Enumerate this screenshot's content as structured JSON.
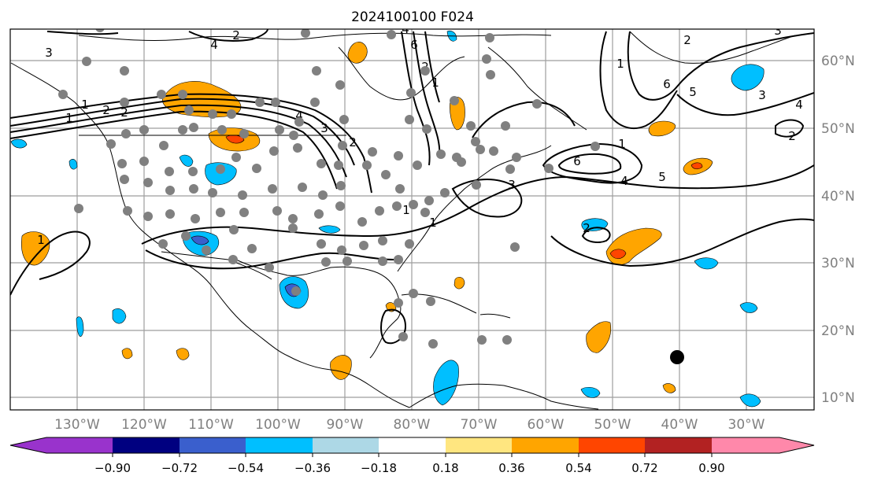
{
  "title": "2024100100 F024",
  "lon_labels": [
    "130°W",
    "120°W",
    "110°W",
    "100°W",
    "90°W",
    "80°W",
    "70°W",
    "60°W",
    "50°W",
    "40°W",
    "30°W"
  ],
  "lat_labels": [
    "60°N",
    "50°N",
    "40°N",
    "30°N",
    "20°N",
    "10°N"
  ],
  "colorbar": {
    "tick_labels": [
      "−0.90",
      "−0.72",
      "−0.54",
      "−0.36",
      "−0.18",
      "0.18",
      "0.36",
      "0.54",
      "0.72",
      "0.90"
    ],
    "colors": [
      "#9933cc",
      "#000080",
      "#3a5fcd",
      "#00bfff",
      "#add8e6",
      "#ffffff",
      "#ffe680",
      "#ffa500",
      "#ff4500",
      "#b22222",
      "#ff88aa"
    ]
  },
  "contour_labels": [
    "1",
    "2",
    "3",
    "4",
    "5",
    "6",
    "1",
    "2",
    "3",
    "4",
    "5",
    "6",
    "1",
    "2",
    "3",
    "4",
    "6",
    "2",
    "1",
    "2",
    "3",
    "4",
    "2",
    "1",
    "1",
    "2",
    "3",
    "4",
    "2",
    "1",
    "1"
  ],
  "colors": {
    "land_line": "#000000",
    "grid": "#9e9e9e",
    "station": "#808080",
    "tick_label": "#808080"
  }
}
